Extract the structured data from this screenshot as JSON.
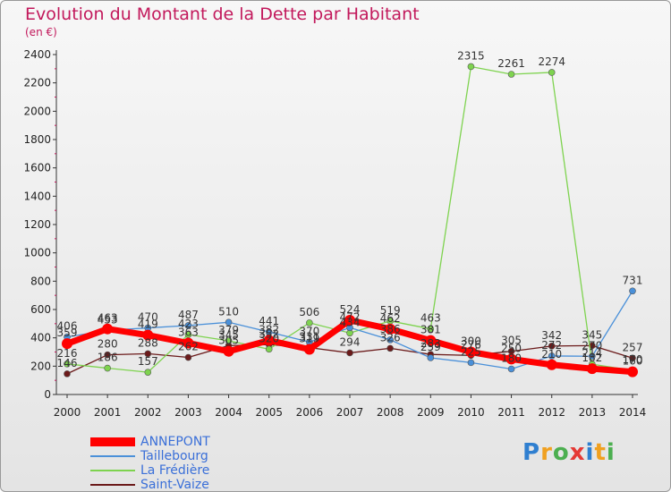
{
  "title": "Evolution du Montant de la Dette par Habitant",
  "units": "(en €)",
  "logo": {
    "letters": [
      "P",
      "r",
      "o",
      "x",
      "i",
      "t",
      "i"
    ],
    "colors": [
      "#2f7fd0",
      "#f0a020",
      "#4caf50",
      "#e53935",
      "#2f7fd0",
      "#f0a020",
      "#4caf50"
    ]
  },
  "chart_data": {
    "type": "line",
    "title": "Evolution du Montant de la Dette par Habitant",
    "ylabel": "(en €)",
    "xlabel": "",
    "ylim": [
      0,
      2400
    ],
    "yticks": [
      0,
      200,
      400,
      600,
      800,
      1000,
      1200,
      1400,
      1600,
      1800,
      2000,
      2200,
      2400
    ],
    "x": [
      "2000",
      "2001",
      "2002",
      "2003",
      "2004",
      "2005",
      "2006",
      "2007",
      "2008",
      "2009",
      "2010",
      "2011",
      "2012",
      "2013",
      "2014"
    ],
    "grid": false,
    "legend_position": "bottom-left",
    "series": [
      {
        "name": "ANNEPONT",
        "color": "#ff0000",
        "values": [
          359,
          463,
          419,
          363,
          305,
          382,
          319,
          524,
          462,
          381,
          300,
          250,
          210,
          182,
          160
        ]
      },
      {
        "name": "Taillebourg",
        "color": "#4a90d9",
        "values": [
          406,
          453,
          470,
          487,
          510,
          441,
          370,
          472,
          386,
          259,
          225,
          180,
          272,
          270,
          731
        ]
      },
      {
        "name": "La Frédière",
        "color": "#7ed34f",
        "values": [
          216,
          186,
          157,
          423,
          379,
          320,
          506,
          434,
          519,
          463,
          2315,
          2261,
          2274,
          214,
          170
        ]
      },
      {
        "name": "Saint-Vaize",
        "color": "#6b1a1a",
        "values": [
          146,
          280,
          288,
          262,
          345,
          352,
          331,
          294,
          326,
          283,
          276,
          305,
          342,
          345,
          257
        ]
      }
    ]
  }
}
